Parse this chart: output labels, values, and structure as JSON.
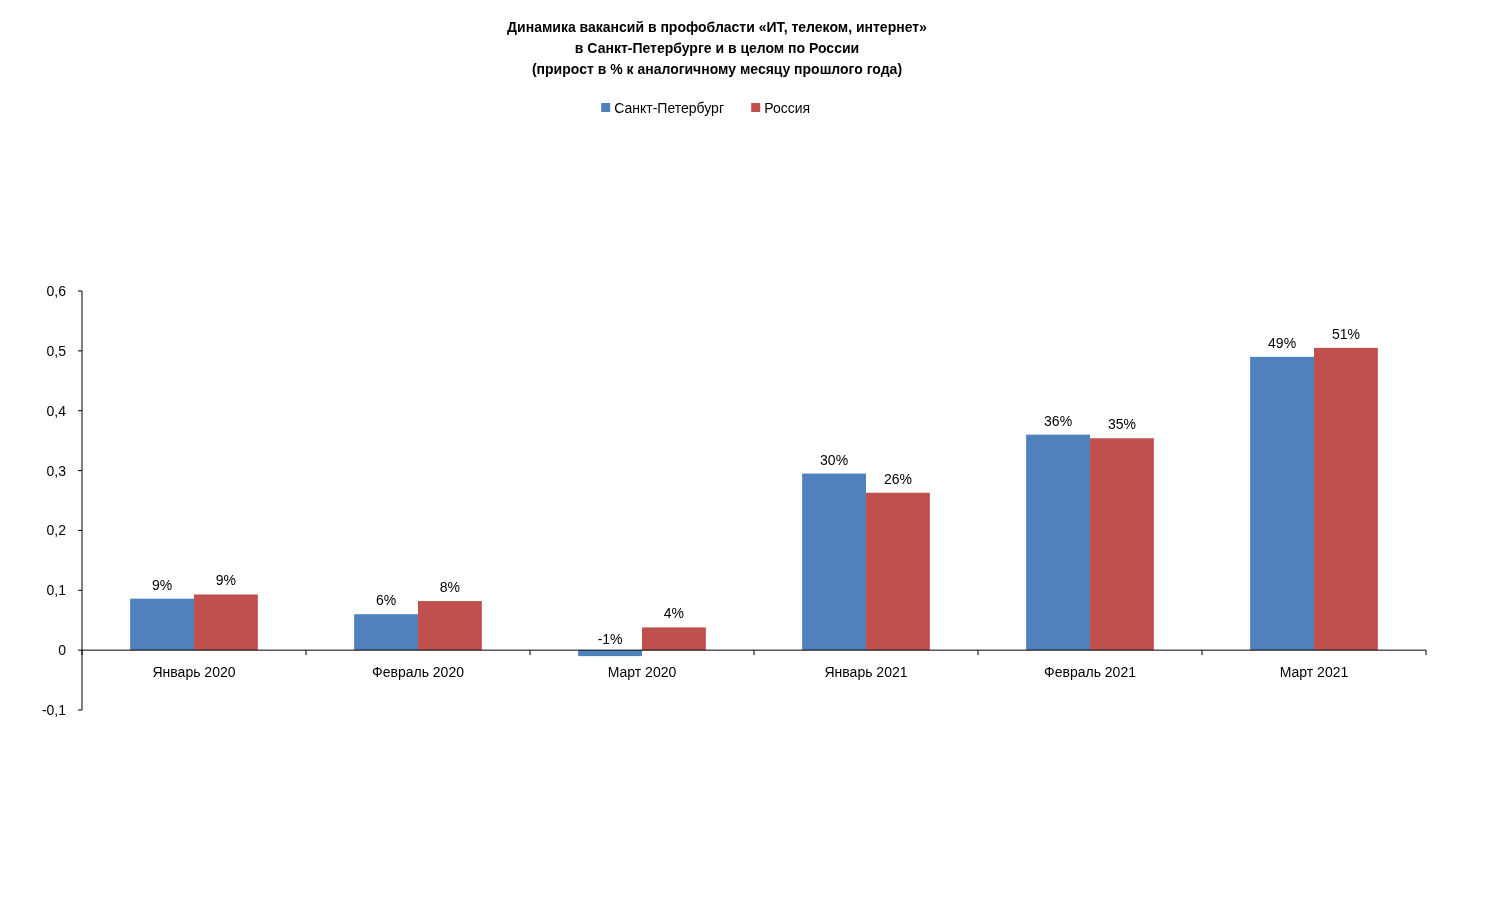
{
  "chart_data": {
    "type": "bar",
    "title": "Динамика вакансий в профобласти «ИТ, телеком, интернет»\nв Санкт-Петербурге и в целом по России\n(прирост в % к аналогичному месяцу прошлого года)",
    "categories": [
      "Январь 2020",
      "Февраль 2020",
      "Март 2020",
      "Январь 2021",
      "Февраль 2021",
      "Март 2021"
    ],
    "series": [
      {
        "name": "Санкт-Петербург",
        "color": "#4f81bd",
        "values": [
          0.086,
          0.06,
          -0.01,
          0.295,
          0.36,
          0.49
        ],
        "value_labels": [
          "9%",
          "6%",
          "-1%",
          "30%",
          "36%",
          "49%"
        ]
      },
      {
        "name": "Россия",
        "color": "#c0504d",
        "values": [
          0.093,
          0.082,
          0.038,
          0.263,
          0.354,
          0.505
        ],
        "value_labels": [
          "9%",
          "8%",
          "4%",
          "26%",
          "35%",
          "51%"
        ]
      }
    ],
    "ylim": [
      -0.1,
      0.6
    ],
    "yticks": [
      {
        "value": -0.1,
        "label": "-0,1"
      },
      {
        "value": 0,
        "label": "0"
      },
      {
        "value": 0.1,
        "label": "0,1"
      },
      {
        "value": 0.2,
        "label": "0,2"
      },
      {
        "value": 0.3,
        "label": "0,3"
      },
      {
        "value": 0.4,
        "label": "0,4"
      },
      {
        "value": 0.5,
        "label": "0,5"
      },
      {
        "value": 0.6,
        "label": "0,6"
      }
    ],
    "grid": false,
    "legend": "top"
  }
}
